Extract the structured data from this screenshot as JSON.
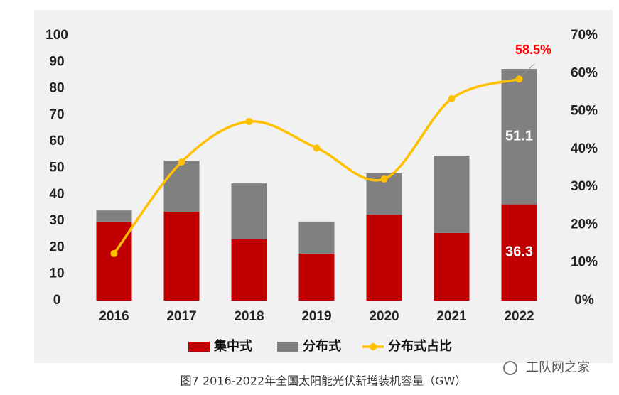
{
  "chart_data": {
    "type": "bar",
    "caption": "图7  2016-2022年全国太阳能光伏新增装机容量（GW）",
    "watermark": "工队网之家",
    "categories": [
      "2016",
      "2017",
      "2018",
      "2019",
      "2020",
      "2021",
      "2022"
    ],
    "series": [
      {
        "name": "集中式",
        "color": "#c00000",
        "values": [
          29.8,
          33.5,
          23.1,
          17.7,
          32.4,
          25.5,
          36.3
        ],
        "value_labels": [
          null,
          null,
          null,
          null,
          null,
          null,
          "36.3"
        ]
      },
      {
        "name": "分布式",
        "color": "#808080",
        "values": [
          4.2,
          19.3,
          21.1,
          12.1,
          15.6,
          29.2,
          51.1
        ],
        "value_labels": [
          null,
          null,
          null,
          null,
          null,
          null,
          "51.1"
        ]
      },
      {
        "name": "分布式占比",
        "type": "line",
        "axis": "y2",
        "color": "#ffc000",
        "values": [
          12.4,
          36.6,
          47.3,
          40.3,
          32.1,
          53.3,
          58.5
        ],
        "value_labels": [
          null,
          null,
          null,
          null,
          null,
          null,
          "58.5%"
        ]
      }
    ],
    "ylim": [
      0,
      100
    ],
    "yticks": [
      0,
      10,
      20,
      30,
      40,
      50,
      60,
      70,
      80,
      90,
      100
    ],
    "y2lim": [
      0,
      70
    ],
    "y2ticks": [
      {
        "value": 0,
        "label": "0%"
      },
      {
        "value": 10,
        "label": "10%"
      },
      {
        "value": 20,
        "label": "20%"
      },
      {
        "value": 30,
        "label": "30%"
      },
      {
        "value": 40,
        "label": "40%"
      },
      {
        "value": 50,
        "label": "50%"
      },
      {
        "value": 60,
        "label": "60%"
      },
      {
        "value": 70,
        "label": "70%"
      }
    ]
  }
}
